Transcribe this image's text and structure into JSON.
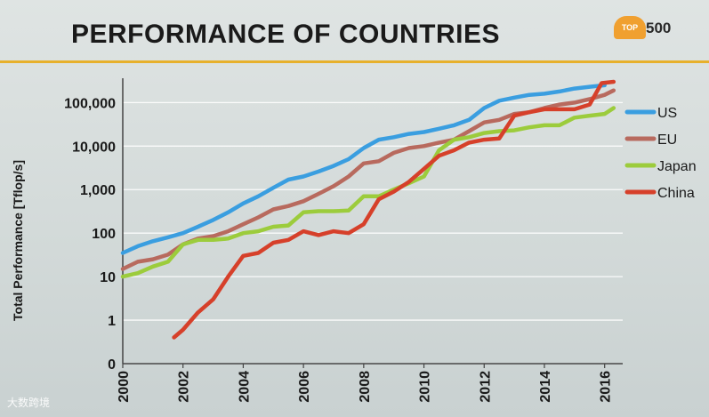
{
  "slide": {
    "title": "PERFORMANCE OF COUNTRIES",
    "logo_small": "TOP",
    "logo_number": "500",
    "watermark": "大数跨境"
  },
  "colors": {
    "US": "#3a9ee0",
    "EU": "#b86a5e",
    "Japan": "#9ccc3c",
    "China": "#d6402a",
    "accent_rule": "#e7b02c"
  },
  "chart_data": {
    "type": "line",
    "title": "PERFORMANCE OF COUNTRIES",
    "ylabel": "Total Performance [Tflop/s]",
    "xlabel": "",
    "yscale": "log",
    "ylim": [
      0.1,
      300000
    ],
    "xlim": [
      2000,
      2016.6
    ],
    "grid": true,
    "legend": "right",
    "x_ticks": [
      "2000",
      "2002",
      "2004",
      "2006",
      "2008",
      "2010",
      "2012",
      "2014",
      "2016"
    ],
    "y_ticks": [
      {
        "value": 0.1,
        "label": "0"
      },
      {
        "value": 1,
        "label": "1"
      },
      {
        "value": 10,
        "label": "10"
      },
      {
        "value": 100,
        "label": "100"
      },
      {
        "value": 1000,
        "label": "1,000"
      },
      {
        "value": 10000,
        "label": "10,000"
      },
      {
        "value": 100000,
        "label": "100,000"
      }
    ],
    "series": [
      {
        "name": "US",
        "x": [
          2000.0,
          2000.5,
          2001.0,
          2001.5,
          2002.0,
          2002.5,
          2003.0,
          2003.5,
          2004.0,
          2004.5,
          2005.0,
          2005.5,
          2006.0,
          2006.5,
          2007.0,
          2007.5,
          2008.0,
          2008.5,
          2009.0,
          2009.5,
          2010.0,
          2010.5,
          2011.0,
          2011.5,
          2012.0,
          2012.5,
          2013.0,
          2013.5,
          2014.0,
          2014.5,
          2015.0,
          2015.5,
          2016.0
        ],
        "y": [
          35,
          50,
          65,
          80,
          100,
          140,
          200,
          300,
          480,
          700,
          1100,
          1700,
          2000,
          2600,
          3500,
          5000,
          9000,
          14000,
          16000,
          19000,
          21000,
          25000,
          30000,
          40000,
          75000,
          110000,
          130000,
          150000,
          160000,
          180000,
          210000,
          230000,
          250000
        ]
      },
      {
        "name": "EU",
        "x": [
          2000.0,
          2000.5,
          2001.0,
          2001.5,
          2002.0,
          2002.5,
          2003.0,
          2003.5,
          2004.0,
          2004.5,
          2005.0,
          2005.5,
          2006.0,
          2006.5,
          2007.0,
          2007.5,
          2008.0,
          2008.5,
          2009.0,
          2009.5,
          2010.0,
          2010.5,
          2011.0,
          2011.5,
          2012.0,
          2012.5,
          2013.0,
          2013.5,
          2014.0,
          2014.5,
          2015.0,
          2015.5,
          2016.0,
          2016.3
        ],
        "y": [
          15,
          22,
          25,
          32,
          55,
          75,
          85,
          110,
          160,
          230,
          350,
          420,
          540,
          800,
          1200,
          2000,
          4000,
          4500,
          7000,
          9000,
          10000,
          12000,
          14000,
          22000,
          35000,
          40000,
          55000,
          60000,
          75000,
          90000,
          100000,
          120000,
          150000,
          190000
        ]
      },
      {
        "name": "Japan",
        "x": [
          2000.0,
          2000.5,
          2001.0,
          2001.5,
          2002.0,
          2002.5,
          2003.0,
          2003.5,
          2004.0,
          2004.5,
          2005.0,
          2005.5,
          2006.0,
          2006.5,
          2007.0,
          2007.5,
          2008.0,
          2008.5,
          2009.0,
          2009.5,
          2010.0,
          2010.5,
          2011.0,
          2011.5,
          2012.0,
          2012.5,
          2013.0,
          2013.5,
          2014.0,
          2014.5,
          2015.0,
          2015.5,
          2016.0,
          2016.3
        ],
        "y": [
          10,
          12,
          17,
          22,
          55,
          70,
          70,
          75,
          100,
          110,
          140,
          150,
          300,
          320,
          320,
          330,
          700,
          700,
          1000,
          1400,
          2000,
          8000,
          14000,
          16000,
          20000,
          22000,
          23000,
          27000,
          30000,
          30000,
          45000,
          50000,
          55000,
          75000
        ]
      },
      {
        "name": "China",
        "x": [
          2001.7,
          2002.0,
          2002.5,
          2003.0,
          2003.5,
          2004.0,
          2004.5,
          2005.0,
          2005.5,
          2006.0,
          2006.5,
          2007.0,
          2007.5,
          2008.0,
          2008.5,
          2009.0,
          2009.5,
          2010.0,
          2010.5,
          2011.0,
          2011.5,
          2012.0,
          2012.5,
          2013.0,
          2013.5,
          2014.0,
          2014.5,
          2015.0,
          2015.5,
          2015.9,
          2016.3
        ],
        "y": [
          0.4,
          0.6,
          1.5,
          3,
          10,
          30,
          35,
          60,
          70,
          110,
          90,
          110,
          100,
          160,
          600,
          900,
          1500,
          3000,
          6000,
          8000,
          12000,
          14000,
          15000,
          50000,
          60000,
          70000,
          70000,
          70000,
          90000,
          280000,
          300000
        ]
      }
    ]
  }
}
